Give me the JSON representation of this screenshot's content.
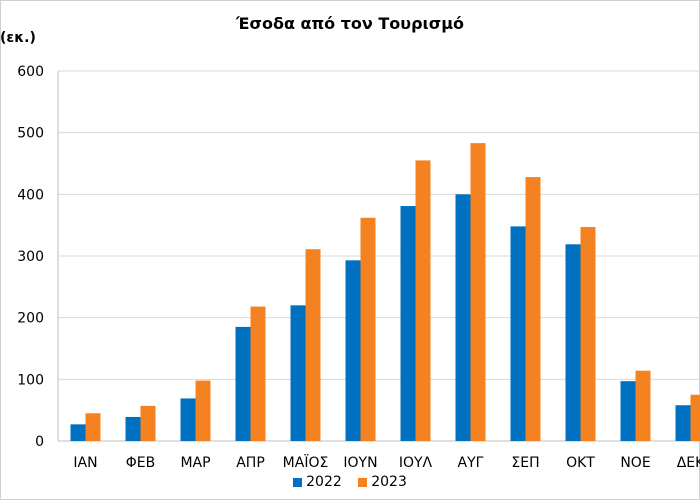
{
  "chart_data": {
    "type": "bar",
    "title": "Έσοδα από τον Τουρισμό",
    "ylabel": "(εκ.)",
    "xlabel": "",
    "ylim": [
      0,
      600
    ],
    "yticks": [
      0,
      100,
      200,
      300,
      400,
      500,
      600
    ],
    "grid": true,
    "legend_position": "bottom",
    "categories": [
      "ΙΑΝ",
      "ΦΕΒ",
      "ΜΑΡ",
      "ΑΠΡ",
      "ΜΑΪΟΣ",
      "ΙΟΥΝ",
      "ΙΟΥΛ",
      "ΑΥΓ",
      "ΣΕΠ",
      "ΟΚΤ",
      "ΝΟΕ",
      "ΔΕΚ"
    ],
    "series": [
      {
        "name": "2022",
        "color": "#0070c0",
        "values": [
          27,
          39,
          69,
          185,
          220,
          293,
          381,
          400,
          348,
          319,
          97,
          58
        ]
      },
      {
        "name": "2023",
        "color": "#f58220",
        "values": [
          45,
          57,
          98,
          218,
          311,
          362,
          455,
          483,
          428,
          347,
          114,
          75
        ]
      }
    ]
  }
}
